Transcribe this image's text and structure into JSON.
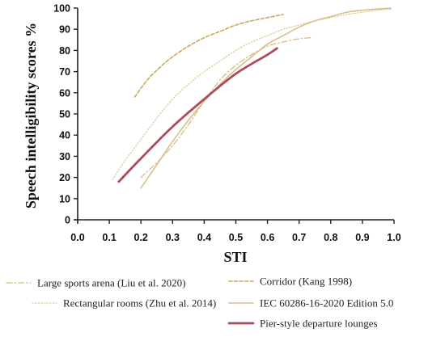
{
  "chart_data": {
    "type": "line",
    "title": "",
    "xlabel": "STI",
    "ylabel": "Speech intelligibility scores %",
    "xlim": [
      0.0,
      1.0
    ],
    "ylim": [
      0,
      100
    ],
    "xticks": [
      "0.0",
      "0.1",
      "0.2",
      "0.3",
      "0.4",
      "0.5",
      "0.6",
      "0.7",
      "0.8",
      "0.9",
      "1.0"
    ],
    "yticks": [
      "0",
      "10",
      "20",
      "30",
      "40",
      "50",
      "60",
      "70",
      "80",
      "90",
      "100"
    ],
    "grid": false,
    "legend_position": "bottom",
    "series": [
      {
        "name": "Large sports arena (Liu et al. 2020)",
        "style": "dash-dot",
        "color": "#d4bd85",
        "x": [
          0.2,
          0.25,
          0.3,
          0.35,
          0.4,
          0.45,
          0.5,
          0.55,
          0.6,
          0.65,
          0.7,
          0.74
        ],
        "y": [
          20,
          27,
          35,
          45,
          56,
          66,
          73,
          78,
          82,
          84,
          85.5,
          86
        ]
      },
      {
        "name": "Corridor (Kang 1998)",
        "style": "dashed",
        "color": "#c9a95c",
        "x": [
          0.18,
          0.22,
          0.26,
          0.3,
          0.35,
          0.4,
          0.45,
          0.5,
          0.55,
          0.6,
          0.65
        ],
        "y": [
          58,
          66,
          72,
          77,
          82,
          86,
          89,
          92,
          94,
          95.5,
          97
        ]
      },
      {
        "name": "Rectangular rooms (Zhu et al. 2014)",
        "style": "dotted",
        "color": "#e0cd9c",
        "x": [
          0.11,
          0.15,
          0.2,
          0.25,
          0.3,
          0.35,
          0.4,
          0.45,
          0.5,
          0.55,
          0.6,
          0.65,
          0.7,
          0.75,
          0.8,
          0.85,
          0.9,
          0.95,
          0.99
        ],
        "y": [
          19,
          28,
          38,
          48,
          57,
          64,
          70,
          75,
          80,
          84,
          87,
          90,
          92,
          94,
          95.5,
          97,
          98,
          99,
          99.5
        ]
      },
      {
        "name": "IEC 60286-16-2020 Edition 5.0",
        "style": "solid",
        "color": "#d8bf8a",
        "x": [
          0.2,
          0.25,
          0.3,
          0.35,
          0.4,
          0.45,
          0.5,
          0.55,
          0.6,
          0.65,
          0.7,
          0.75,
          0.8,
          0.85,
          0.9,
          0.95,
          0.99
        ],
        "y": [
          15,
          26,
          37,
          47,
          56,
          64,
          71,
          77,
          83,
          87,
          91,
          94,
          96,
          98,
          99,
          99.6,
          100
        ]
      },
      {
        "name": "Pier-style departure lounges",
        "style": "solid-thick",
        "color": "#b04a58",
        "x": [
          0.13,
          0.2,
          0.3,
          0.4,
          0.5,
          0.6,
          0.63
        ],
        "y": [
          18,
          29,
          44,
          57,
          69,
          78,
          81
        ]
      }
    ]
  }
}
